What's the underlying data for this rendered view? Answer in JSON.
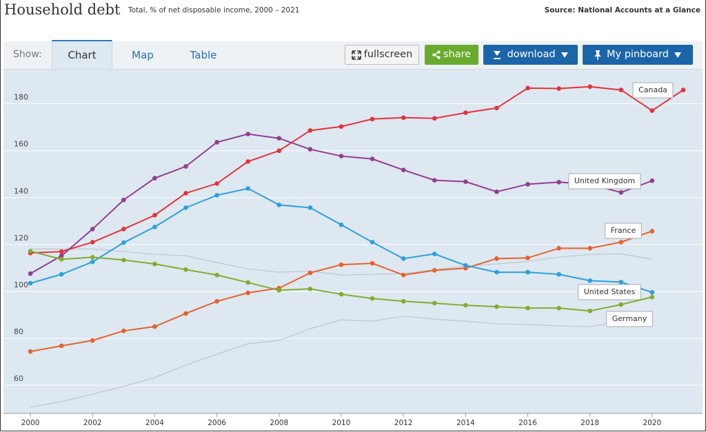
{
  "header": {
    "title": "Household debt",
    "subtitle": "Total, % of net disposable income, 2000 – 2021",
    "source": "Source: National Accounts at a Glance"
  },
  "toolbar": {
    "show": "Show:",
    "tabs": [
      "Chart",
      "Map",
      "Table"
    ],
    "buttons": [
      "fullscreen",
      "share",
      "download",
      "My pinboard"
    ]
  },
  "chart_data": {
    "type": "line",
    "x": [
      2000,
      2001,
      2002,
      2003,
      2004,
      2005,
      2006,
      2007,
      2008,
      2009,
      2010,
      2011,
      2012,
      2013,
      2014,
      2015,
      2016,
      2017,
      2018,
      2019,
      2020,
      2021
    ],
    "xlim": [
      1999.2,
      2021.6
    ],
    "xticks": [
      2000,
      2002,
      2004,
      2006,
      2008,
      2010,
      2012,
      2014,
      2016,
      2018,
      2020
    ],
    "ylim": [
      48,
      194
    ],
    "yticks": [
      60,
      80,
      100,
      120,
      140,
      160,
      180
    ],
    "grid": true,
    "series": [
      {
        "color": "#bcc7cf",
        "values": [
          118.1,
          118.1,
          118.1,
          117.0,
          115.8,
          115.2,
          112.3,
          109.6,
          108.2,
          108.7,
          107.0,
          107.3,
          107.6,
          109.3,
          110.8,
          111.7,
          112.8,
          114.6,
          115.8,
          116.0,
          113.7,
          null
        ]
      },
      {
        "color": "#bcc7cf",
        "values": [
          50.7,
          53.0,
          56.2,
          59.5,
          63.3,
          68.6,
          73.3,
          77.7,
          79.1,
          84.1,
          87.9,
          87.3,
          89.4,
          88.2,
          87.3,
          86.2,
          85.9,
          85.3,
          85.0,
          87.0,
          90.0,
          null
        ]
      },
      {
        "name": "Canada",
        "color": "#e5323b",
        "values": [
          116.4,
          117.0,
          121.0,
          126.6,
          132.5,
          141.9,
          146.0,
          155.4,
          160.0,
          168.6,
          170.3,
          173.5,
          174.1,
          173.8,
          176.2,
          178.2,
          186.7,
          186.5,
          187.3,
          185.9,
          177.1,
          185.9
        ]
      },
      {
        "name": "United Kingdom",
        "color": "#943c8f",
        "values": [
          107.6,
          115.2,
          126.6,
          139.0,
          148.3,
          153.3,
          163.6,
          167.1,
          165.3,
          160.6,
          157.7,
          156.5,
          151.8,
          147.4,
          146.8,
          142.5,
          145.7,
          146.6,
          145.7,
          142.2,
          147.2,
          null
        ]
      },
      {
        "name": "France",
        "color": "#e8602c",
        "values": [
          74.4,
          76.8,
          79.1,
          83.2,
          85.0,
          90.6,
          95.8,
          99.4,
          101.4,
          107.9,
          111.4,
          112.0,
          107.0,
          109.0,
          109.9,
          114.0,
          114.3,
          118.4,
          118.4,
          121.0,
          125.7,
          null
        ]
      },
      {
        "name": "United States",
        "color": "#2b9fe0",
        "values": [
          103.5,
          107.3,
          112.6,
          120.8,
          127.5,
          135.7,
          141.0,
          143.9,
          136.9,
          135.7,
          128.4,
          121.0,
          114.0,
          116.0,
          111.1,
          108.2,
          108.2,
          107.3,
          104.6,
          104.0,
          99.6,
          null
        ]
      },
      {
        "name": "Germany",
        "color": "#85ab2e",
        "values": [
          117.2,
          113.7,
          114.6,
          113.4,
          111.7,
          109.3,
          107.0,
          103.8,
          100.5,
          101.1,
          98.8,
          97.0,
          95.8,
          95.0,
          94.1,
          93.5,
          92.9,
          92.9,
          91.7,
          94.4,
          97.6,
          null
        ]
      }
    ]
  }
}
